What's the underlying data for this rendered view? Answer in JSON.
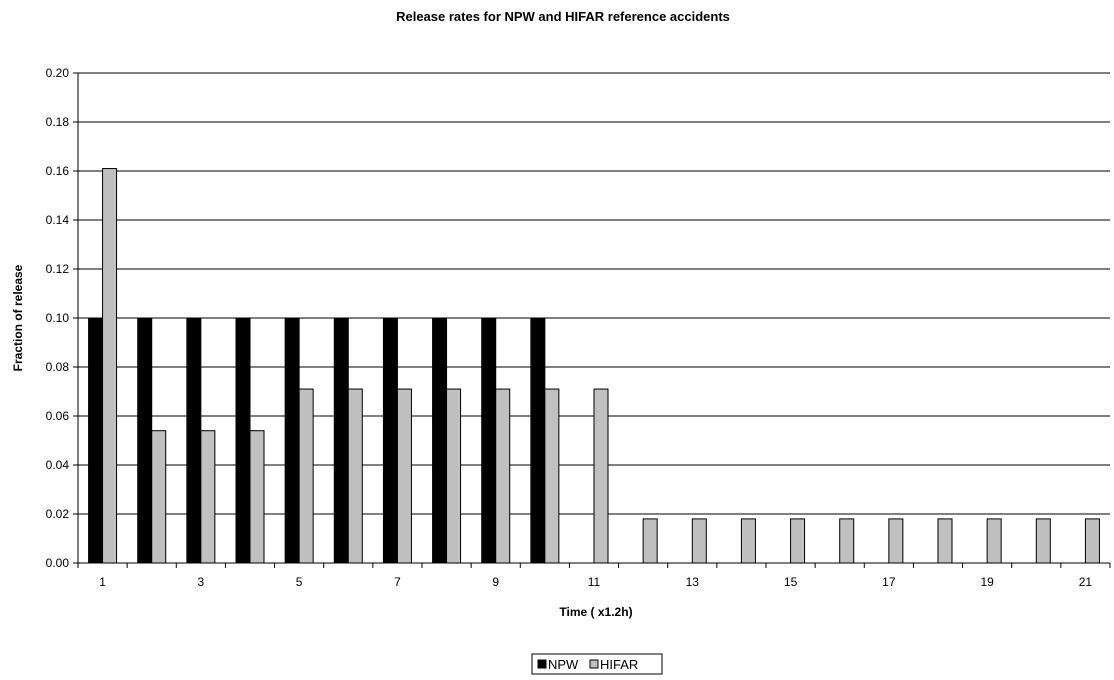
{
  "chart_data": {
    "type": "bar",
    "title": "Release rates for NPW and HIFAR reference accidents",
    "xlabel": "Time ( x1.2h)",
    "ylabel": "Fraction of release",
    "ylim": [
      0,
      0.2
    ],
    "yticks": [
      "0.00",
      "0.02",
      "0.04",
      "0.06",
      "0.08",
      "0.10",
      "0.12",
      "0.14",
      "0.16",
      "0.18",
      "0.20"
    ],
    "categories": [
      "1",
      "2",
      "3",
      "4",
      "5",
      "6",
      "7",
      "8",
      "9",
      "10",
      "11",
      "12",
      "13",
      "14",
      "15",
      "16",
      "17",
      "18",
      "19",
      "20",
      "21"
    ],
    "xtick_labels_shown": [
      "1",
      "3",
      "5",
      "7",
      "9",
      "11",
      "13",
      "15",
      "17",
      "19",
      "21"
    ],
    "grid": "horizontal major gridlines",
    "legend_position": "bottom-center",
    "series": [
      {
        "name": "NPW",
        "color": "#000000",
        "values": [
          0.1,
          0.1,
          0.1,
          0.1,
          0.1,
          0.1,
          0.1,
          0.1,
          0.1,
          0.1,
          0,
          0,
          0,
          0,
          0,
          0,
          0,
          0,
          0,
          0,
          0
        ]
      },
      {
        "name": "HIFAR",
        "color": "#c0c0c0",
        "values": [
          0.161,
          0.054,
          0.054,
          0.054,
          0.071,
          0.071,
          0.071,
          0.071,
          0.071,
          0.071,
          0.071,
          0.018,
          0.018,
          0.018,
          0.018,
          0.018,
          0.018,
          0.018,
          0.018,
          0.018,
          0.018
        ]
      }
    ]
  }
}
